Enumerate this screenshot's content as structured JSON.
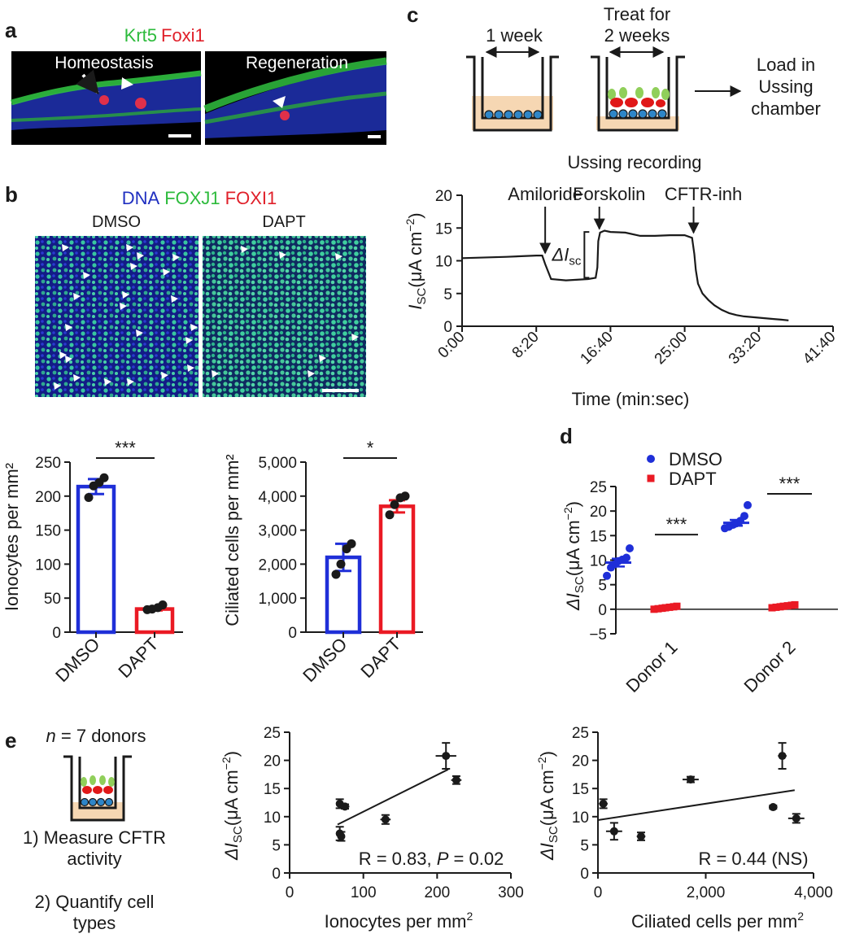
{
  "panel_a": {
    "letter": "a",
    "legend": [
      {
        "text": "Krt5",
        "color": "#2dbb3c"
      },
      {
        "text": "Foxi1",
        "color": "#e0202a"
      }
    ],
    "images": [
      "Homeostasis",
      "Regeneration"
    ]
  },
  "panel_b_images": {
    "letter": "b",
    "legend": [
      {
        "text": "DNA",
        "color": "#1f2fc0"
      },
      {
        "text": "FOXJ1",
        "color": "#2dbb3c"
      },
      {
        "text": "FOXI1",
        "color": "#e0202a"
      }
    ],
    "images": [
      "DMSO",
      "DAPT"
    ]
  },
  "panel_c_schematic": {
    "letter": "c",
    "label_week": "1 week",
    "label_treat": [
      "Treat for",
      "2 weeks"
    ],
    "label_load": [
      "Load in",
      "Ussing",
      "chamber"
    ],
    "title": "Ussing recording"
  },
  "panel_d": {
    "letter": "d"
  },
  "panel_e_schematic": {
    "letter": "e",
    "n_prefix": "n",
    "n_suffix": " = 7 donors",
    "step1": [
      "1) Measure CFTR",
      "activity"
    ],
    "step2": [
      "2) Quantify cell",
      "types"
    ]
  },
  "chart_data": [
    {
      "id": "c-trace",
      "type": "line",
      "xlabel": "Time (min:sec)",
      "ylabel_main": "I",
      "ylabel_sub": "SC",
      "ylabel_unit": "(μA cm",
      "ylabel_sup": "−2",
      "ylabel_end": ")",
      "xlim": [
        0,
        2500
      ],
      "ylim": [
        0,
        20
      ],
      "xticks": [
        0,
        500,
        1000,
        1500,
        2000,
        2500
      ],
      "xtick_labels": [
        "0:00",
        "8:20",
        "16:40",
        "25:00",
        "33:20",
        "41:40"
      ],
      "yticks": [
        0,
        5,
        10,
        15,
        20
      ],
      "x": [
        0,
        300,
        500,
        540,
        560,
        600,
        700,
        850,
        900,
        912,
        918,
        930,
        960,
        1000,
        1100,
        1200,
        1300,
        1400,
        1500,
        1550,
        1565,
        1575,
        1590,
        1620,
        1660,
        1700,
        1750,
        1800,
        1850,
        1900,
        2000,
        2100,
        2150,
        2200
      ],
      "y": [
        10.4,
        10.6,
        10.8,
        10.8,
        9.5,
        7.2,
        7.0,
        7.2,
        7.4,
        9.0,
        13.0,
        14.3,
        14.6,
        14.4,
        14.3,
        13.8,
        13.8,
        13.9,
        13.9,
        13.5,
        11.0,
        8.6,
        6.5,
        5.0,
        4.0,
        3.2,
        2.5,
        2.0,
        1.7,
        1.5,
        1.3,
        1.1,
        1.0,
        0.9
      ],
      "annotations": [
        {
          "text": "Amiloride",
          "x": 560,
          "y": 10.8
        },
        {
          "text": "Forskolin",
          "x": 925,
          "y": 14.5
        },
        {
          "text": "CFTR-inh",
          "x": 1560,
          "y": 13.9
        }
      ],
      "delta_label": {
        "delta": "ΔI",
        "sub": "sc",
        "x": 912,
        "y_low": 7.4,
        "y_high": 14.4
      }
    },
    {
      "id": "b-ionocytes",
      "type": "bar",
      "categories": [
        "DMSO",
        "DAPT"
      ],
      "values": [
        214,
        34
      ],
      "sem": [
        11,
        2
      ],
      "colors": [
        "#1f2fd8",
        "#ea1a24"
      ],
      "points": [
        [
          198,
          215,
          220,
          227
        ],
        [
          33,
          34,
          36,
          40
        ]
      ],
      "ylabel": "Ionocytes per mm²",
      "ylim": [
        0,
        250
      ],
      "yticks": [
        0,
        50,
        100,
        150,
        200,
        250
      ],
      "ytick_labels": [
        "0",
        "50",
        "100",
        "150",
        "200",
        "250"
      ],
      "significance": "***"
    },
    {
      "id": "b-ciliated",
      "type": "bar",
      "categories": [
        "DMSO",
        "DAPT"
      ],
      "values": [
        2200,
        3700
      ],
      "sem": [
        400,
        180
      ],
      "colors": [
        "#1f2fd8",
        "#ea1a24"
      ],
      "points": [
        [
          1700,
          2000,
          2450,
          2600
        ],
        [
          3450,
          3750,
          3950,
          4000
        ]
      ],
      "ylabel": "Ciliated cells per mm²",
      "ylim": [
        0,
        5000
      ],
      "yticks": [
        0,
        1000,
        2000,
        3000,
        4000,
        5000
      ],
      "ytick_labels": [
        "0",
        "1,000",
        "2,000",
        "3,000",
        "4,000",
        "5,000"
      ],
      "significance": "*"
    },
    {
      "id": "d-scatter",
      "type": "scatter",
      "categories": [
        "Donor 1",
        "Donor 2"
      ],
      "legend": [
        {
          "name": "DMSO",
          "color": "#1f2fd8"
        },
        {
          "name": "DAPT",
          "color": "#ea1a24"
        }
      ],
      "series": [
        {
          "name": "DMSO",
          "color": "#1f2fd8",
          "mean": [
            9.5,
            17.6
          ],
          "sem": [
            0.8,
            0.6
          ],
          "values": [
            [
              6.8,
              8.5,
              9.2,
              9.8,
              10.1,
              10.5,
              12.4
            ],
            [
              16.5,
              16.8,
              17.2,
              17.5,
              18.0,
              19.0,
              21.2
            ]
          ]
        },
        {
          "name": "DAPT",
          "color": "#ea1a24",
          "mean": [
            0.3,
            0.6
          ],
          "sem": [
            0.1,
            0.1
          ],
          "values": [
            [
              0.0,
              0.1,
              0.2,
              0.3,
              0.4,
              0.5,
              0.6
            ],
            [
              0.3,
              0.4,
              0.5,
              0.6,
              0.7,
              0.8,
              0.9
            ]
          ]
        }
      ],
      "ylabel_main": "ΔI",
      "ylabel_sub": "SC",
      "ylabel_unit": "(μA cm",
      "ylabel_sup": "−2",
      "ylabel_end": ")",
      "ylim": [
        -5,
        25
      ],
      "yticks": [
        -5,
        0,
        5,
        10,
        15,
        20,
        25
      ],
      "ytick_labels": [
        "−5",
        "0",
        "5",
        "10",
        "15",
        "20",
        "25"
      ],
      "significance": [
        "***",
        "***"
      ]
    },
    {
      "id": "e-ionocytes",
      "type": "scatter",
      "xlabel": "Ionocytes per mm",
      "xlabel_sup": "2",
      "ylabel_main": "ΔI",
      "ylabel_sub": "SC",
      "ylabel_unit": "(μA cm",
      "ylabel_sup": "−2",
      "ylabel_end": ")",
      "xlim": [
        0,
        300
      ],
      "ylim": [
        0,
        25
      ],
      "xticks": [
        0,
        100,
        200,
        300
      ],
      "yticks": [
        0,
        5,
        10,
        15,
        20,
        25
      ],
      "points": [
        {
          "x": 68,
          "y": 12.3,
          "xerr": 4,
          "yerr": 0.8
        },
        {
          "x": 75,
          "y": 11.8,
          "xerr": 6,
          "yerr": 0.4
        },
        {
          "x": 68,
          "y": 7.0,
          "xerr": 5,
          "yerr": 1.2
        },
        {
          "x": 70,
          "y": 6.5,
          "xerr": 4,
          "yerr": 0.8
        },
        {
          "x": 130,
          "y": 9.5,
          "xerr": 7,
          "yerr": 0.8
        },
        {
          "x": 212,
          "y": 20.8,
          "xerr": 14,
          "yerr": 2.3
        },
        {
          "x": 226,
          "y": 16.5,
          "xerr": 7,
          "yerr": 0.7
        }
      ],
      "fit": {
        "x": [
          65,
          215
        ],
        "y": [
          8.6,
          18.4
        ]
      },
      "stat": {
        "r": "R = 0.83, ",
        "p_italic": "P",
        "p_rest": " = 0.02"
      }
    },
    {
      "id": "e-ciliated",
      "type": "scatter",
      "xlabel": "Ciliated cells per mm",
      "xlabel_sup": "2",
      "ylabel_main": "ΔI",
      "ylabel_sub": "SC",
      "ylabel_unit": "(μA cm",
      "ylabel_sup": "−2",
      "ylabel_end": ")",
      "xlim": [
        0,
        4000
      ],
      "ylim": [
        0,
        25
      ],
      "xticks": [
        0,
        2000,
        4000
      ],
      "xtick_labels": [
        "0",
        "2,000",
        "4,000"
      ],
      "yticks": [
        0,
        5,
        10,
        15,
        20,
        25
      ],
      "points": [
        {
          "x": 100,
          "y": 12.3,
          "xerr": 80,
          "yerr": 0.8
        },
        {
          "x": 300,
          "y": 7.4,
          "xerr": 150,
          "yerr": 1.5
        },
        {
          "x": 800,
          "y": 6.5,
          "xerr": 80,
          "yerr": 0.7
        },
        {
          "x": 1720,
          "y": 16.6,
          "xerr": 150,
          "yerr": 0.5
        },
        {
          "x": 3250,
          "y": 11.7,
          "xerr": 80,
          "yerr": 0.3
        },
        {
          "x": 3420,
          "y": 20.8,
          "xerr": 80,
          "yerr": 2.3
        },
        {
          "x": 3680,
          "y": 9.7,
          "xerr": 150,
          "yerr": 0.8
        }
      ],
      "fit": {
        "x": [
          0,
          3650
        ],
        "y": [
          9.4,
          14.7
        ]
      },
      "stat": {
        "text": "R = 0.44 (NS)"
      }
    }
  ]
}
